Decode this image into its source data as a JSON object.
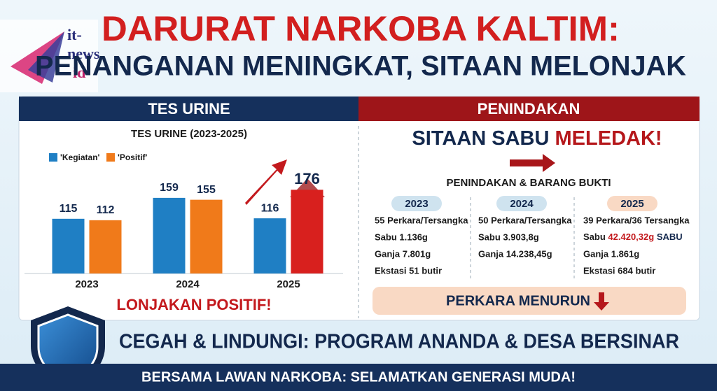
{
  "logo": {
    "line1": "it-",
    "line2": "news",
    "line3": "id"
  },
  "header": {
    "title": "DARURAT NARKOBA KALTIM:",
    "subtitle": "PENANGANAN MENINGKAT, SITAAN MELONJAK"
  },
  "left_panel": {
    "heading": "TES URINE",
    "callout": "LONJAKAN POSITIF!"
  },
  "chart_data": {
    "type": "bar",
    "title": "TES URINE (2023-2025)",
    "categories": [
      "2023",
      "2024",
      "2025"
    ],
    "series": [
      {
        "name": "'Kegiatan'",
        "color": "#1f7fc4",
        "values": [
          115,
          159,
          116
        ]
      },
      {
        "name": "'Positif'",
        "color": "#f07a1a",
        "point_colors": [
          "#f07a1a",
          "#f07a1a",
          "#d8201e"
        ],
        "values": [
          112,
          155,
          176
        ]
      }
    ]
  },
  "right_panel": {
    "heading": "PENINDAKAN",
    "headline": "SITAAN SABU",
    "headline_emphasis": "MELEDAK!",
    "section_title": "PENINDAKAN & BARANG BUKTI",
    "columns": [
      {
        "year": "2023",
        "lines": [
          "55 Perkara/Tersangka",
          "Sabu 1.136g",
          "Ganja 7.801g",
          "Ekstasi 51 butir"
        ]
      },
      {
        "year": "2024",
        "lines": [
          "50 Perkara/Tersangka",
          "Sabu 3.903,8g",
          "Ganja 14.238,45g"
        ]
      },
      {
        "year": "2025",
        "lines": [
          "39 Perkara/36 Tersangka",
          {
            "text": "Sabu",
            "emphasis": "42.420,32g",
            "suffix": "SABU"
          },
          "Ganja 1.861g",
          "Ekstasi 684 butir"
        ]
      }
    ],
    "footer": "PERKARA MENURUN"
  },
  "program": "CEGAH & LINDUNGI: PROGRAM ANANDA & DESA BERSINAR",
  "banner": "BERSAMA LAWAN NARKOBA: SELAMATKAN GENERASI MUDA!"
}
